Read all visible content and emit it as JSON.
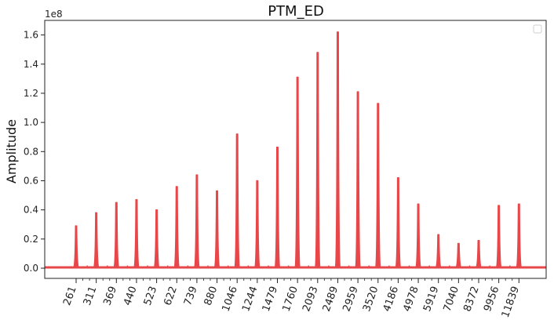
{
  "chart_data": {
    "type": "line",
    "title": "PTM_ED",
    "xlabel": "",
    "ylabel": "Amplitude",
    "y_scale_label": "1e8",
    "ylim": [
      -0.07,
      1.7
    ],
    "y_ticks": [
      0.0,
      0.2,
      0.4,
      0.6,
      0.8,
      1.0,
      1.2,
      1.4,
      1.6
    ],
    "y_tick_labels": [
      "0.0",
      "0.2",
      "0.4",
      "0.6",
      "0.8",
      "1.0",
      "1.2",
      "1.4",
      "1.6"
    ],
    "x_tick_labels": [
      "261",
      "311",
      "369",
      "440",
      "523",
      "622",
      "739",
      "880",
      "1046",
      "1244",
      "1479",
      "1760",
      "2093",
      "2489",
      "2959",
      "3520",
      "4186",
      "4978",
      "5919",
      "7040",
      "8372",
      "9956",
      "11839"
    ],
    "peaks": [
      {
        "x": "261",
        "amplitude": 0.29
      },
      {
        "x": "311",
        "amplitude": 0.38
      },
      {
        "x": "369",
        "amplitude": 0.45
      },
      {
        "x": "440",
        "amplitude": 0.47
      },
      {
        "x": "523",
        "amplitude": 0.4
      },
      {
        "x": "622",
        "amplitude": 0.56
      },
      {
        "x": "739",
        "amplitude": 0.64
      },
      {
        "x": "880",
        "amplitude": 0.53
      },
      {
        "x": "1046",
        "amplitude": 0.92
      },
      {
        "x": "1244",
        "amplitude": 0.6
      },
      {
        "x": "1479",
        "amplitude": 0.83
      },
      {
        "x": "1760",
        "amplitude": 1.31
      },
      {
        "x": "2093",
        "amplitude": 1.48
      },
      {
        "x": "2489",
        "amplitude": 1.62
      },
      {
        "x": "2959",
        "amplitude": 1.21
      },
      {
        "x": "3520",
        "amplitude": 1.13
      },
      {
        "x": "4186",
        "amplitude": 0.62
      },
      {
        "x": "4978",
        "amplitude": 0.44
      },
      {
        "x": "5919",
        "amplitude": 0.23
      },
      {
        "x": "7040",
        "amplitude": 0.17
      },
      {
        "x": "8372",
        "amplitude": 0.19
      },
      {
        "x": "9956",
        "amplitude": 0.43
      },
      {
        "x": "11839",
        "amplitude": 0.44
      }
    ],
    "baseline": 0.005,
    "grid": false,
    "legend": "top-right (empty)",
    "colors": {
      "series": "#e8474a",
      "axis": "#222222",
      "background": "#ffffff"
    }
  }
}
